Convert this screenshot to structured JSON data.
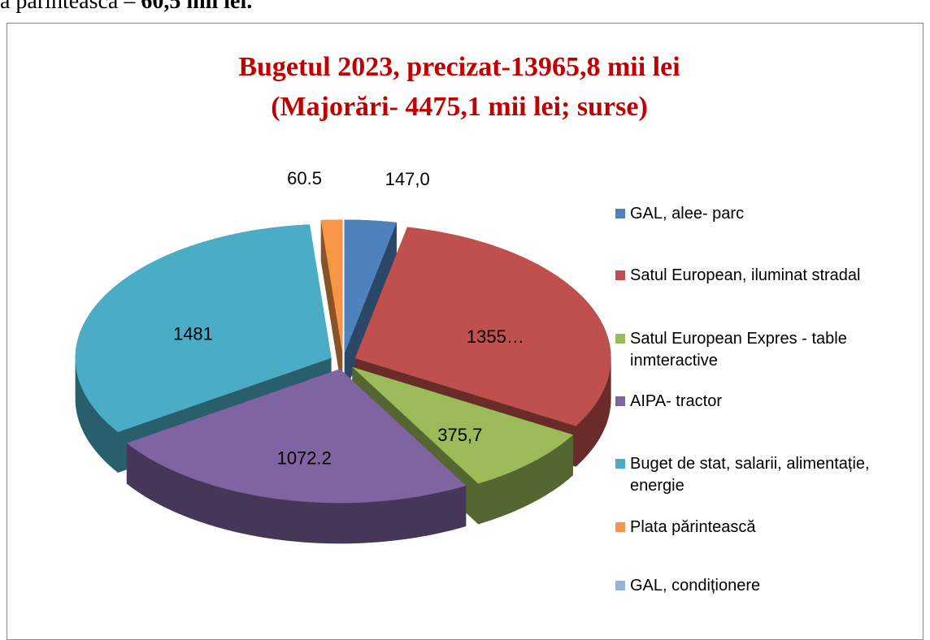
{
  "page_text": {
    "fragment": "a părintească – ",
    "fragment_bold": "60,5 mii lei."
  },
  "chart_data": {
    "type": "pie3d",
    "title": "Bugetul 2023, precizat-13965,8 mii lei",
    "subtitle": "(Majorări- 4475,1 mii lei;  surse)",
    "categories": [
      "GAL, alee- parc",
      "Satul European, iluminat stradal",
      "Satul European Expres - table inmteractive",
      "AIPA- tractor",
      "Buget de stat, salarii, alimentație, energie",
      "Plata părintească",
      "GAL, condiționere"
    ],
    "values": [
      147.0,
      1355,
      375.7,
      1072.2,
      1481,
      60.5,
      0
    ],
    "value_labels": [
      "147,0",
      "1355…",
      "375,7",
      "1072.2",
      "1481",
      "60.5",
      null
    ],
    "colors": [
      "#4f81bd",
      "#c0504d",
      "#9bbb59",
      "#8064a2",
      "#4bacc6",
      "#f79646",
      "#95b3d7"
    ],
    "legend": "right"
  }
}
